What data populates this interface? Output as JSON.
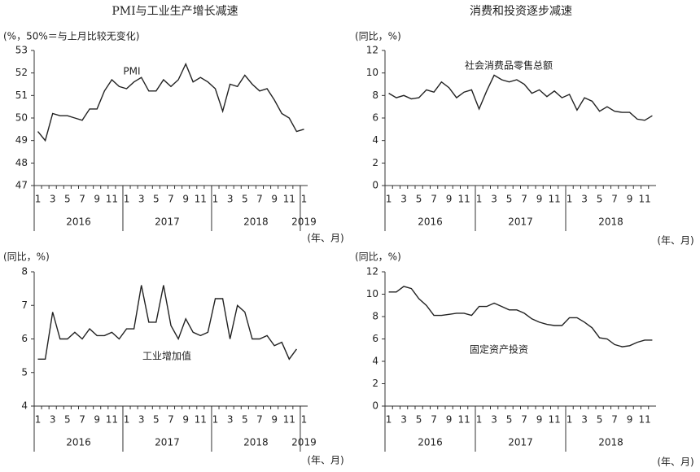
{
  "chart_data": [
    {
      "type": "line",
      "title": "PMI与工业生产增长减速",
      "y_label": "(%，50%＝与上月比较无变化)",
      "x_label": "(年、月)",
      "categories": [
        "1",
        null,
        "3",
        null,
        "5",
        null,
        "7",
        null,
        "9",
        null,
        "11",
        null,
        "1",
        null,
        "3",
        null,
        "5",
        null,
        "7",
        null,
        "9",
        null,
        "11",
        null,
        "1",
        null,
        "3",
        null,
        "5",
        null,
        "7",
        null,
        "9",
        null,
        "11",
        null,
        "1"
      ],
      "years": [
        "2016",
        "2017",
        "2018",
        "2019"
      ],
      "series": [
        {
          "name": "PMI",
          "color": "#222222",
          "values": [
            49.4,
            49.0,
            50.2,
            50.1,
            50.1,
            50.0,
            49.9,
            50.4,
            50.4,
            51.2,
            51.7,
            51.4,
            51.3,
            51.6,
            51.8,
            51.2,
            51.2,
            51.7,
            51.4,
            51.7,
            52.4,
            51.6,
            51.8,
            51.6,
            51.3,
            50.3,
            51.5,
            51.4,
            51.9,
            51.5,
            51.2,
            51.3,
            50.8,
            50.2,
            50.0,
            49.4,
            49.5
          ]
        }
      ],
      "ylim": [
        47,
        53
      ],
      "yticks": [
        47,
        48,
        49,
        50,
        51,
        52,
        53
      ]
    },
    {
      "type": "line",
      "title": "消费和投资逐步减速",
      "y_label": "(同比，%)",
      "x_label": "(年、月)",
      "categories": [
        "1",
        null,
        "3",
        null,
        "5",
        null,
        "7",
        null,
        "9",
        null,
        "11",
        null,
        "1",
        null,
        "3",
        null,
        "5",
        null,
        "7",
        null,
        "9",
        null,
        "11",
        null,
        "1",
        null,
        "3",
        null,
        "5",
        null,
        "7",
        null,
        "9",
        null,
        "11",
        null
      ],
      "years": [
        "2016",
        "2017",
        "2018"
      ],
      "series": [
        {
          "name": "社会消费品零售总额",
          "color": "#222222",
          "values": [
            8.2,
            7.8,
            8.0,
            7.7,
            7.8,
            8.5,
            8.3,
            9.2,
            8.7,
            7.8,
            8.3,
            8.5,
            6.8,
            8.4,
            9.8,
            9.4,
            9.2,
            9.4,
            9.0,
            8.2,
            8.5,
            7.9,
            8.4,
            7.8,
            8.1,
            6.7,
            7.8,
            7.5,
            6.6,
            7.0,
            6.6,
            6.5,
            6.5,
            5.9,
            5.8,
            6.2
          ]
        }
      ],
      "ylim": [
        0,
        12
      ],
      "yticks": [
        0,
        2,
        4,
        6,
        8,
        10,
        12
      ]
    },
    {
      "type": "line",
      "y_label": "(同比，%)",
      "x_label": "(年、月)",
      "categories": [
        "1",
        null,
        "3",
        null,
        "5",
        null,
        "7",
        null,
        "9",
        null,
        "11",
        null,
        "1",
        null,
        "3",
        null,
        "5",
        null,
        "7",
        null,
        "9",
        null,
        "11",
        null,
        "1",
        null,
        "3",
        null,
        "5",
        null,
        "7",
        null,
        "9",
        null,
        "11",
        null,
        "1"
      ],
      "years": [
        "2016",
        "2017",
        "2018",
        "2019"
      ],
      "series": [
        {
          "name": "工业增加值",
          "color": "#222222",
          "values": [
            5.4,
            5.4,
            6.8,
            6.0,
            6.0,
            6.2,
            6.0,
            6.3,
            6.1,
            6.1,
            6.2,
            6.0,
            6.3,
            6.3,
            7.6,
            6.5,
            6.5,
            7.6,
            6.4,
            6.0,
            6.6,
            6.2,
            6.1,
            6.2,
            7.2,
            7.2,
            6.0,
            7.0,
            6.8,
            6.0,
            6.0,
            6.1,
            5.8,
            5.9,
            5.4,
            5.7,
            null
          ]
        }
      ],
      "ylim": [
        4,
        8
      ],
      "yticks": [
        4,
        5,
        6,
        7,
        8
      ]
    },
    {
      "type": "line",
      "y_label": "(同比，%)",
      "x_label": "(年、月)",
      "categories": [
        "1",
        null,
        "3",
        null,
        "5",
        null,
        "7",
        null,
        "9",
        null,
        "11",
        null,
        "1",
        null,
        "3",
        null,
        "5",
        null,
        "7",
        null,
        "9",
        null,
        "11",
        null,
        "1",
        null,
        "3",
        null,
        "5",
        null,
        "7",
        null,
        "9",
        null,
        "11",
        null
      ],
      "years": [
        "2016",
        "2017",
        "2018"
      ],
      "series": [
        {
          "name": "固定资产投资",
          "color": "#222222",
          "values": [
            10.2,
            10.2,
            10.7,
            10.5,
            9.6,
            9.0,
            8.1,
            8.1,
            8.2,
            8.3,
            8.3,
            8.1,
            8.9,
            8.9,
            9.2,
            8.9,
            8.6,
            8.6,
            8.3,
            7.8,
            7.5,
            7.3,
            7.2,
            7.2,
            7.9,
            7.9,
            7.5,
            7.0,
            6.1,
            6.0,
            5.5,
            5.3,
            5.4,
            5.7,
            5.9,
            5.9
          ]
        }
      ],
      "ylim": [
        0,
        12
      ],
      "yticks": [
        0,
        2,
        4,
        6,
        8,
        10,
        12
      ]
    }
  ]
}
